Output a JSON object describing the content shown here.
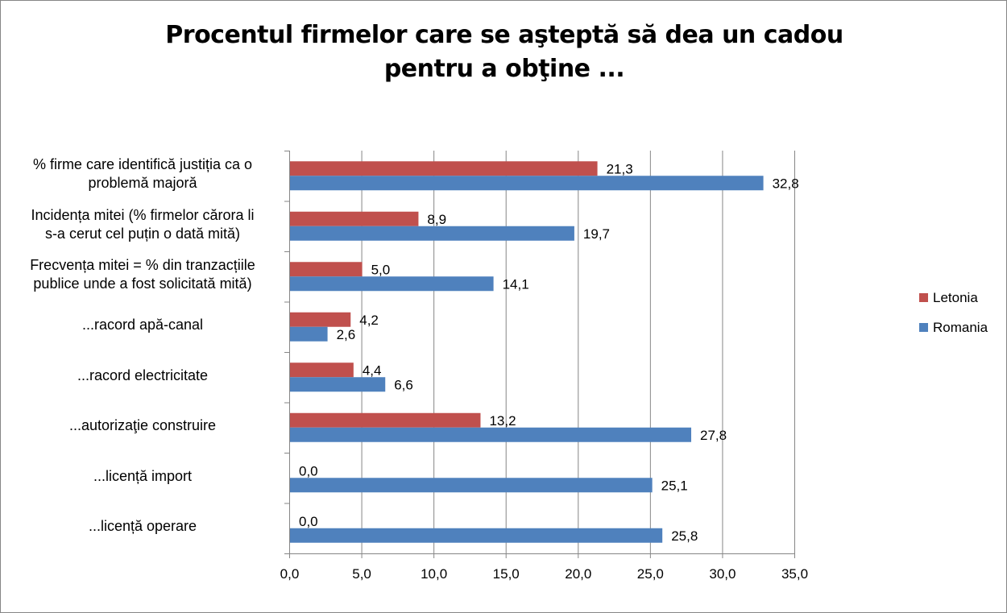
{
  "chart_data": {
    "type": "bar",
    "orientation": "horizontal",
    "title": "Procentul firmelor care se aşteptă să dea un cadou pentru a obţine ...",
    "categories": [
      "% firme care identifică justiția ca o problemă majoră",
      "Incidența mitei (% firmelor cărora li s-a cerut cel puțin o dată mită)",
      "Frecvența mitei = % din tranzacțiile publice unde a fost solicitată mită)",
      "...racord apă-canal",
      "...racord electricitate",
      "...autorizaţie construire",
      "...licență import",
      "...licență operare"
    ],
    "category_lines": [
      [
        "% firme care identifică justiția ca o",
        "problemă majoră"
      ],
      [
        "Incidența mitei (% firmelor cărora li",
        "s-a cerut cel puțin o dată mită)"
      ],
      [
        "Frecvența mitei = % din tranzacțiile",
        "publice unde a fost solicitată mită)"
      ],
      [
        "...racord apă-canal"
      ],
      [
        "...racord electricitate"
      ],
      [
        "...autorizaţie construire"
      ],
      [
        "...licență import"
      ],
      [
        "...licență operare"
      ]
    ],
    "series": [
      {
        "name": "Letonia",
        "color": "#C0504D",
        "values": [
          21.3,
          8.9,
          5.0,
          4.2,
          4.4,
          13.2,
          0.0,
          0.0
        ]
      },
      {
        "name": "Romania",
        "color": "#4F81BD",
        "values": [
          32.8,
          19.7,
          14.1,
          2.6,
          6.6,
          27.8,
          25.1,
          25.8
        ]
      }
    ],
    "xlim": [
      0,
      35
    ],
    "xticks": [
      "0,0",
      "5,0",
      "10,0",
      "15,0",
      "20,0",
      "25,0",
      "30,0",
      "35,0"
    ],
    "grid": true,
    "legend_position": "right",
    "decimal_separator": ","
  }
}
